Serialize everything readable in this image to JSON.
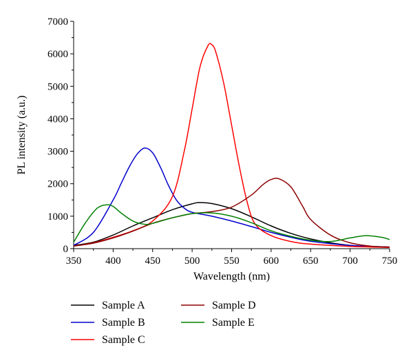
{
  "chart_data": {
    "type": "line",
    "xlabel": "Wavelength (nm)",
    "ylabel": "PL intensity (a.u.)",
    "xlim": [
      350,
      750
    ],
    "ylim": [
      0,
      7000
    ],
    "xticks": [
      "350",
      "400",
      "450",
      "500",
      "550",
      "600",
      "650",
      "700",
      "750"
    ],
    "yticks": [
      "0",
      "1000",
      "2000",
      "3000",
      "4000",
      "5000",
      "6000",
      "7000"
    ],
    "grid": false,
    "legend_position": "bottom-left",
    "series": [
      {
        "name": "Sample A",
        "color": "#000000",
        "x": [
          350,
          375,
          400,
          425,
          450,
          475,
          500,
          510,
          525,
          550,
          575,
          600,
          625,
          650,
          675,
          700,
          725,
          750
        ],
        "y": [
          100,
          200,
          420,
          700,
          950,
          1200,
          1380,
          1420,
          1390,
          1230,
          980,
          700,
          470,
          300,
          180,
          100,
          60,
          40
        ]
      },
      {
        "name": "Sample B",
        "color": "#0000cc",
        "x": [
          350,
          375,
          400,
          410,
          420,
          430,
          440,
          450,
          460,
          470,
          480,
          490,
          500,
          525,
          550,
          575,
          600,
          625,
          650,
          700,
          750
        ],
        "y": [
          100,
          500,
          1500,
          2000,
          2500,
          2900,
          3100,
          2950,
          2500,
          1950,
          1500,
          1250,
          1120,
          1000,
          850,
          680,
          500,
          350,
          230,
          100,
          50
        ]
      },
      {
        "name": "Sample C",
        "color": "#ff0000",
        "x": [
          350,
          375,
          400,
          425,
          450,
          475,
          490,
          500,
          510,
          520,
          525,
          530,
          540,
          550,
          560,
          570,
          580,
          600,
          625,
          650,
          700,
          750
        ],
        "y": [
          80,
          180,
          350,
          550,
          850,
          1600,
          3000,
          4300,
          5600,
          6250,
          6280,
          6050,
          5100,
          3800,
          2500,
          1400,
          750,
          400,
          220,
          140,
          70,
          40
        ]
      },
      {
        "name": "Sample D",
        "color": "#8b0000",
        "x": [
          350,
          375,
          400,
          425,
          450,
          475,
          500,
          525,
          550,
          575,
          590,
          600,
          610,
          625,
          640,
          650,
          675,
          700,
          725,
          750
        ],
        "y": [
          80,
          170,
          330,
          540,
          780,
          950,
          1080,
          1140,
          1280,
          1650,
          1980,
          2130,
          2150,
          1900,
          1300,
          900,
          420,
          180,
          80,
          50
        ]
      },
      {
        "name": "Sample E",
        "color": "#008000",
        "x": [
          350,
          365,
          380,
          392,
          400,
          410,
          425,
          440,
          450,
          475,
          500,
          525,
          550,
          575,
          600,
          625,
          650,
          675,
          700,
          720,
          740,
          750
        ],
        "y": [
          200,
          800,
          1250,
          1350,
          1300,
          1100,
          850,
          750,
          780,
          950,
          1080,
          1100,
          1000,
          800,
          550,
          380,
          260,
          220,
          330,
          400,
          350,
          280
        ]
      }
    ]
  }
}
